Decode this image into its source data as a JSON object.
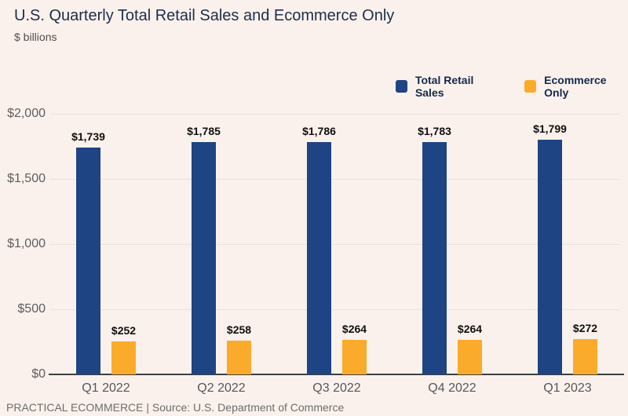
{
  "header": {
    "title": "U.S. Quarterly Total Retail Sales and Ecommerce Only",
    "subtitle": "$ billions"
  },
  "legend": [
    {
      "label": "Total Retail Sales",
      "color": "#1e4484"
    },
    {
      "label": "Ecommerce Only",
      "color": "#fbab2b"
    }
  ],
  "chart_data": {
    "type": "bar",
    "title": "U.S. Quarterly Total Retail Sales and Ecommerce Only",
    "subtitle": "$ billions",
    "categories": [
      "Q1 2022",
      "Q2 2022",
      "Q3 2022",
      "Q4 2022",
      "Q1 2023"
    ],
    "series": [
      {
        "name": "Total Retail Sales",
        "color": "#1e4484",
        "values": [
          1739,
          1785,
          1786,
          1783,
          1799
        ],
        "labels": [
          "$1,739",
          "$1,785",
          "$1,786",
          "$1,783",
          "$1,799"
        ]
      },
      {
        "name": "Ecommerce Only",
        "color": "#fbab2b",
        "values": [
          252,
          258,
          264,
          264,
          272
        ],
        "labels": [
          "$252",
          "$258",
          "$264",
          "$264",
          "$272"
        ]
      }
    ],
    "xlabel": "",
    "ylabel": "$ billions",
    "ylim": [
      0,
      2000
    ],
    "yticks": [
      {
        "value": 0,
        "label": "$0"
      },
      {
        "value": 500,
        "label": "$500"
      },
      {
        "value": 1000,
        "label": "$1,000"
      },
      {
        "value": 1500,
        "label": "$1,500"
      },
      {
        "value": 2000,
        "label": "$2,000"
      }
    ],
    "grid": true,
    "legend_position": "top-right"
  },
  "footer": {
    "text": "PRACTICAL ECOMMERCE | Source: U.S. Department of Commerce"
  }
}
